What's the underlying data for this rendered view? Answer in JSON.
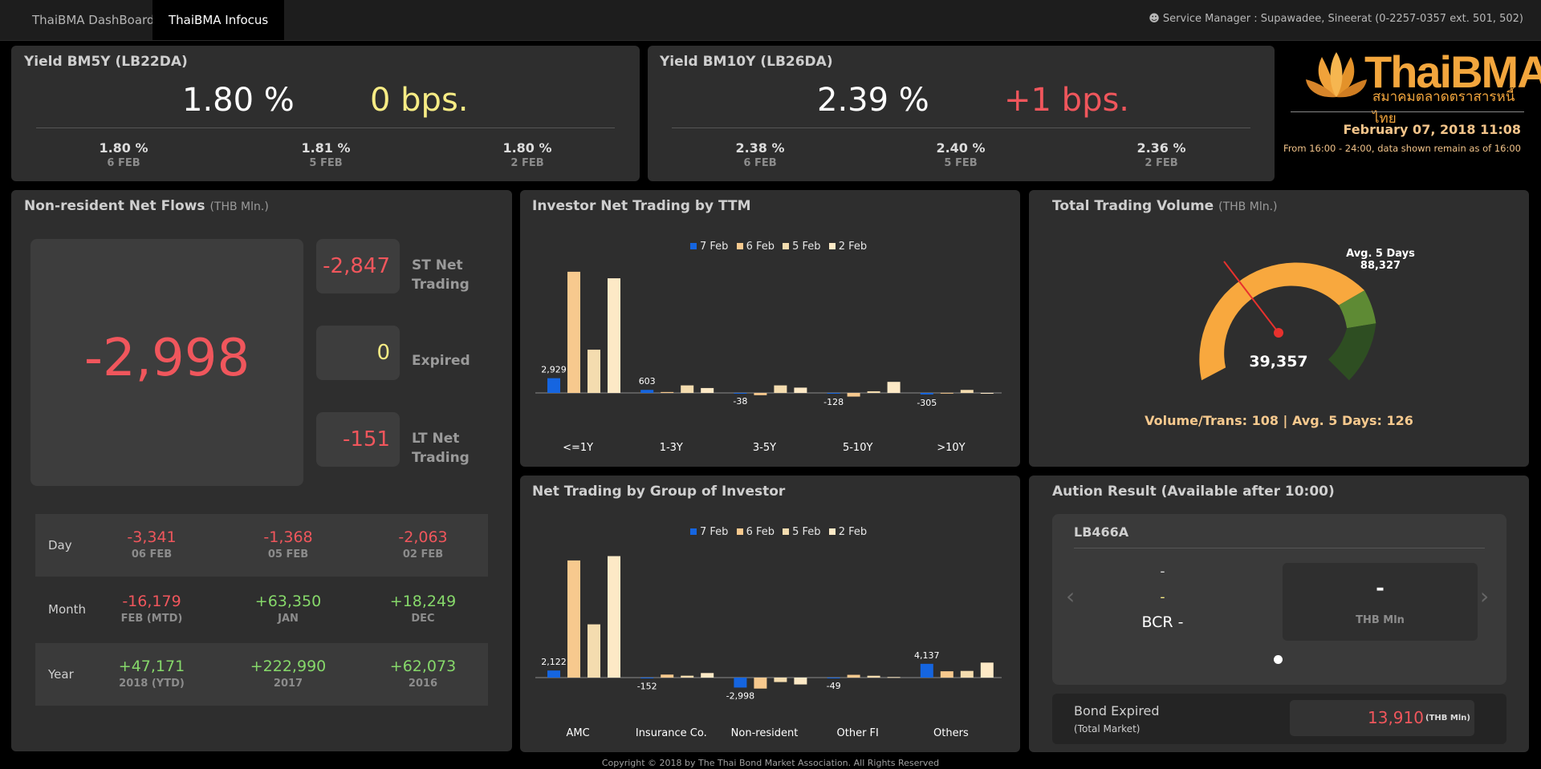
{
  "nav": {
    "tabs": [
      "ThaiBMA DashBoard",
      "ThaiBMA Infocus"
    ],
    "service_manager": "Service Manager : Supawadee, Sineerat (0-2257-0357 ext. 501, 502)"
  },
  "yield5": {
    "title": "Yield BM5Y (LB22DA)",
    "value": "1.80 %",
    "change": "0 bps.",
    "history": [
      {
        "value": "1.80 %",
        "date": "6 FEB"
      },
      {
        "value": "1.81 %",
        "date": "5 FEB"
      },
      {
        "value": "1.80 %",
        "date": "2 FEB"
      }
    ]
  },
  "yield10": {
    "title": "Yield BM10Y (LB26DA)",
    "value": "2.39 %",
    "change": "+1 bps.",
    "history": [
      {
        "value": "2.38 %",
        "date": "6 FEB"
      },
      {
        "value": "2.40 %",
        "date": "5 FEB"
      },
      {
        "value": "2.36 %",
        "date": "2 FEB"
      }
    ]
  },
  "brand": {
    "name": "ThaiBMA",
    "thai_name": "สมาคมตลาดตราสารหนี้ไทย",
    "datetime": "February 07, 2018 11:08",
    "note": "From 16:00 - 24:00, data shown remain as of 16:00"
  },
  "nonresident": {
    "title": "Non-resident Net Flows",
    "unit": "(THB Mln.)",
    "total": "-2,998",
    "st_value": "-2,847",
    "st_label_1": "ST Net",
    "st_label_2": "Trading",
    "expired_value": "0",
    "expired_label": "Expired",
    "lt_value": "-151",
    "lt_label_1": "LT Net",
    "lt_label_2": "Trading",
    "rows": [
      {
        "label": "Day",
        "cells": [
          {
            "value": "-3,341",
            "date": "06 FEB",
            "sign": "neg"
          },
          {
            "value": "-1,368",
            "date": "05 FEB",
            "sign": "neg"
          },
          {
            "value": "-2,063",
            "date": "02 FEB",
            "sign": "neg"
          }
        ]
      },
      {
        "label": "Month",
        "cells": [
          {
            "value": "-16,179",
            "date": "FEB (MTD)",
            "sign": "neg"
          },
          {
            "value": "+63,350",
            "date": "JAN",
            "sign": "pos"
          },
          {
            "value": "+18,249",
            "date": "DEC",
            "sign": "pos"
          }
        ]
      },
      {
        "label": "Year",
        "cells": [
          {
            "value": "+47,171",
            "date": "2018 (YTD)",
            "sign": "pos"
          },
          {
            "value": "+222,990",
            "date": "2017",
            "sign": "pos"
          },
          {
            "value": "+62,073",
            "date": "2016",
            "sign": "pos"
          }
        ]
      }
    ]
  },
  "ttm": {
    "title": "Investor Net Trading by TTM"
  },
  "group": {
    "title": "Net Trading by Group of Investor"
  },
  "volume": {
    "title": "Total Trading Volume",
    "unit": "(THB Mln.)",
    "value": "39,357",
    "avg_label": "Avg. 5 Days",
    "avg_value": "88,327",
    "footer": "Volume/Trans: 108 | Avg. 5 Days: 126"
  },
  "auction": {
    "title": "Aution Result (Available after 10:00)",
    "bond": "LB466A",
    "dash1": "-",
    "dash2": "-",
    "bcr": "BCR -",
    "value": "-",
    "value_unit": "THB Mln",
    "prev": "‹",
    "next": "›"
  },
  "expired": {
    "label": "Bond Expired",
    "sublabel": "(Total Market)",
    "value": "13,910",
    "unit": "(THB Mln)"
  },
  "footer": "Copyright © 2018 by The Thai Bond Market Association. All Rights Reserved",
  "colors": {
    "s1": "#1565e0",
    "s2": "#f7c98e",
    "s3": "#f4dcaf",
    "s4": "#fde9c6"
  },
  "chart_data": [
    {
      "type": "bar",
      "legend": [
        "7 Feb",
        "6 Feb",
        "5 Feb",
        "2 Feb"
      ],
      "categories": [
        "<=1Y",
        "1-3Y",
        "3-5Y",
        "5-10Y",
        ">10Y"
      ],
      "series": [
        {
          "name": "7 Feb",
          "values": [
            2929,
            603,
            -38,
            -128,
            -305
          ]
        },
        {
          "name": "6 Feb",
          "values": [
            24100,
            180,
            -450,
            -730,
            20
          ]
        },
        {
          "name": "5 Feb",
          "values": [
            8600,
            1500,
            1500,
            330,
            600
          ]
        },
        {
          "name": "2 Feb",
          "values": [
            22800,
            970,
            1050,
            2200,
            -100
          ]
        }
      ],
      "data_labels": [
        "2,929",
        "603",
        "-38",
        "-128",
        "-305"
      ]
    },
    {
      "type": "bar",
      "legend": [
        "7 Feb",
        "6 Feb",
        "5 Feb",
        "2 Feb"
      ],
      "categories": [
        "AMC",
        "Insurance Co.",
        "Non-resident",
        "Other FI",
        "Others"
      ],
      "series": [
        {
          "name": "7 Feb",
          "values": [
            2122,
            -152,
            -2998,
            -49,
            4137
          ]
        },
        {
          "name": "6 Feb",
          "values": [
            35200,
            900,
            -3300,
            830,
            1900
          ]
        },
        {
          "name": "5 Feb",
          "values": [
            16000,
            570,
            -1340,
            550,
            2000
          ]
        },
        {
          "name": "2 Feb",
          "values": [
            36500,
            1370,
            -2063,
            170,
            4500
          ]
        }
      ],
      "data_labels": [
        "2,122",
        "-152",
        "-2,998",
        "-49",
        "4,137"
      ]
    },
    {
      "type": "gauge",
      "value": 39357,
      "avg_5_days": 88327
    }
  ]
}
